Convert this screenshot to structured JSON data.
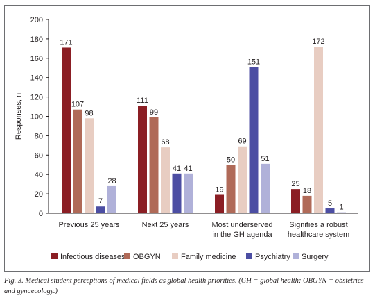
{
  "chart_data": {
    "type": "bar",
    "ylabel": "Responses, n",
    "xlabel": "",
    "ylim": [
      0,
      200
    ],
    "yticks": [
      0,
      20,
      40,
      60,
      80,
      100,
      120,
      140,
      160,
      180,
      200
    ],
    "grid": false,
    "legend_position": "bottom",
    "categories": [
      [
        "Previous 25 years"
      ],
      [
        "Next 25 years"
      ],
      [
        "Most underserved",
        "in the GH agenda"
      ],
      [
        "Signifies a robust",
        "healthcare system"
      ]
    ],
    "series": [
      {
        "name": "Infectious diseases",
        "color": "#8b1e24",
        "values": [
          171,
          111,
          19,
          25
        ]
      },
      {
        "name": "OBGYN",
        "color": "#b06a58",
        "values": [
          107,
          99,
          50,
          18
        ]
      },
      {
        "name": "Family medicine",
        "color": "#e8cdc2",
        "values": [
          98,
          68,
          69,
          172
        ]
      },
      {
        "name": "Psychiatry",
        "color": "#4c4ea3",
        "values": [
          7,
          41,
          151,
          5
        ]
      },
      {
        "name": "Surgery",
        "color": "#b0b1d9",
        "values": [
          28,
          41,
          51,
          1
        ]
      }
    ]
  },
  "caption": "Fig. 3. Medical student perceptions of medical fields as global health priorities. (GH = global health; OBGYN = obstetrics and gynaecology.)"
}
